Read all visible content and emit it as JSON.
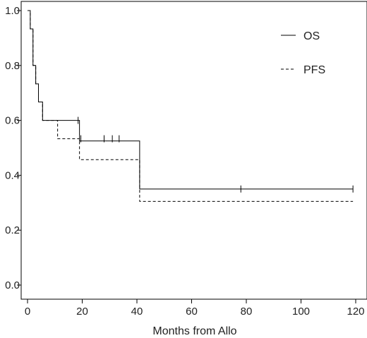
{
  "chart_data": {
    "type": "line",
    "subtype": "kaplan-meier step curve",
    "title": "",
    "xlabel": "Months from Allo",
    "ylabel": "",
    "xlim": [
      0,
      122
    ],
    "ylim": [
      -0.05,
      1.05
    ],
    "xticks": [
      0,
      20,
      40,
      60,
      80,
      100,
      120
    ],
    "yticks": [
      0.0,
      0.2,
      0.4,
      0.6,
      0.8,
      1.0
    ],
    "xtick_labels": [
      "0",
      "20",
      "40",
      "60",
      "80",
      "100",
      "120"
    ],
    "ytick_labels": [
      "0.0",
      "0.2",
      "0.4",
      "0.6",
      "0.8",
      "1.0"
    ],
    "grid": false,
    "legend_position": "top-right",
    "series": [
      {
        "name": "OS",
        "line_style": "solid",
        "color": "#000000",
        "steps": [
          [
            0,
            1.0
          ],
          [
            1.0,
            0.933
          ],
          [
            2.0,
            0.8
          ],
          [
            3.0,
            0.733
          ],
          [
            4.0,
            0.667
          ],
          [
            5.5,
            0.6
          ],
          [
            19.0,
            0.525
          ],
          [
            41.0,
            0.35
          ],
          [
            119.0,
            0.35
          ]
        ],
        "censored": [
          [
            18.5,
            0.6
          ],
          [
            78.0,
            0.35
          ],
          [
            119.0,
            0.35
          ]
        ]
      },
      {
        "name": "PFS",
        "line_style": "dashed",
        "color": "#000000",
        "steps": [
          [
            0,
            1.0
          ],
          [
            1.0,
            0.933
          ],
          [
            2.0,
            0.8
          ],
          [
            3.0,
            0.733
          ],
          [
            4.0,
            0.667
          ],
          [
            5.5,
            0.6
          ],
          [
            11.0,
            0.533
          ],
          [
            19.0,
            0.457
          ],
          [
            41.0,
            0.305
          ],
          [
            119.0,
            0.305
          ]
        ],
        "censored": [
          [
            19.5,
            0.533
          ],
          [
            28.0,
            0.533
          ],
          [
            31.0,
            0.533
          ],
          [
            33.5,
            0.533
          ]
        ]
      }
    ]
  }
}
